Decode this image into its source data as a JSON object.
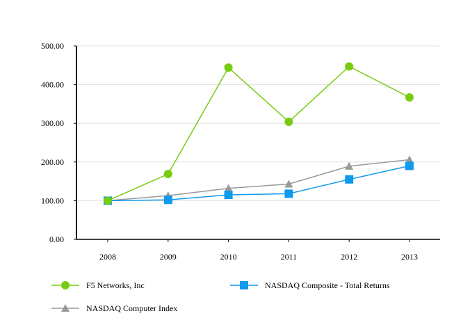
{
  "chart_data": {
    "type": "line",
    "title": "",
    "xlabel": "",
    "ylabel": "",
    "categories": [
      "2008",
      "2009",
      "2010",
      "2011",
      "2012",
      "2013"
    ],
    "ylim": [
      0,
      500
    ],
    "yticks": [
      0,
      100,
      200,
      300,
      400,
      500
    ],
    "ytick_labels": [
      "0.00",
      "100.00",
      "200.00",
      "300.00",
      "400.00",
      "500.00"
    ],
    "grid": "horizontal",
    "legend_position": "bottom",
    "series": [
      {
        "name": "F5 Networks, Inc",
        "values": [
          100,
          169,
          444,
          304,
          447,
          367
        ],
        "color": "#77cc11",
        "marker": "circle"
      },
      {
        "name": "NASDAQ Composite - Total Returns",
        "values": [
          100,
          102,
          115,
          118,
          155,
          190
        ],
        "color": "#1199ee",
        "marker": "square"
      },
      {
        "name": "NASDAQ Computer Index",
        "values": [
          100,
          113,
          132,
          143,
          189,
          206
        ],
        "color": "#9a9a9a",
        "marker": "triangle"
      }
    ]
  }
}
